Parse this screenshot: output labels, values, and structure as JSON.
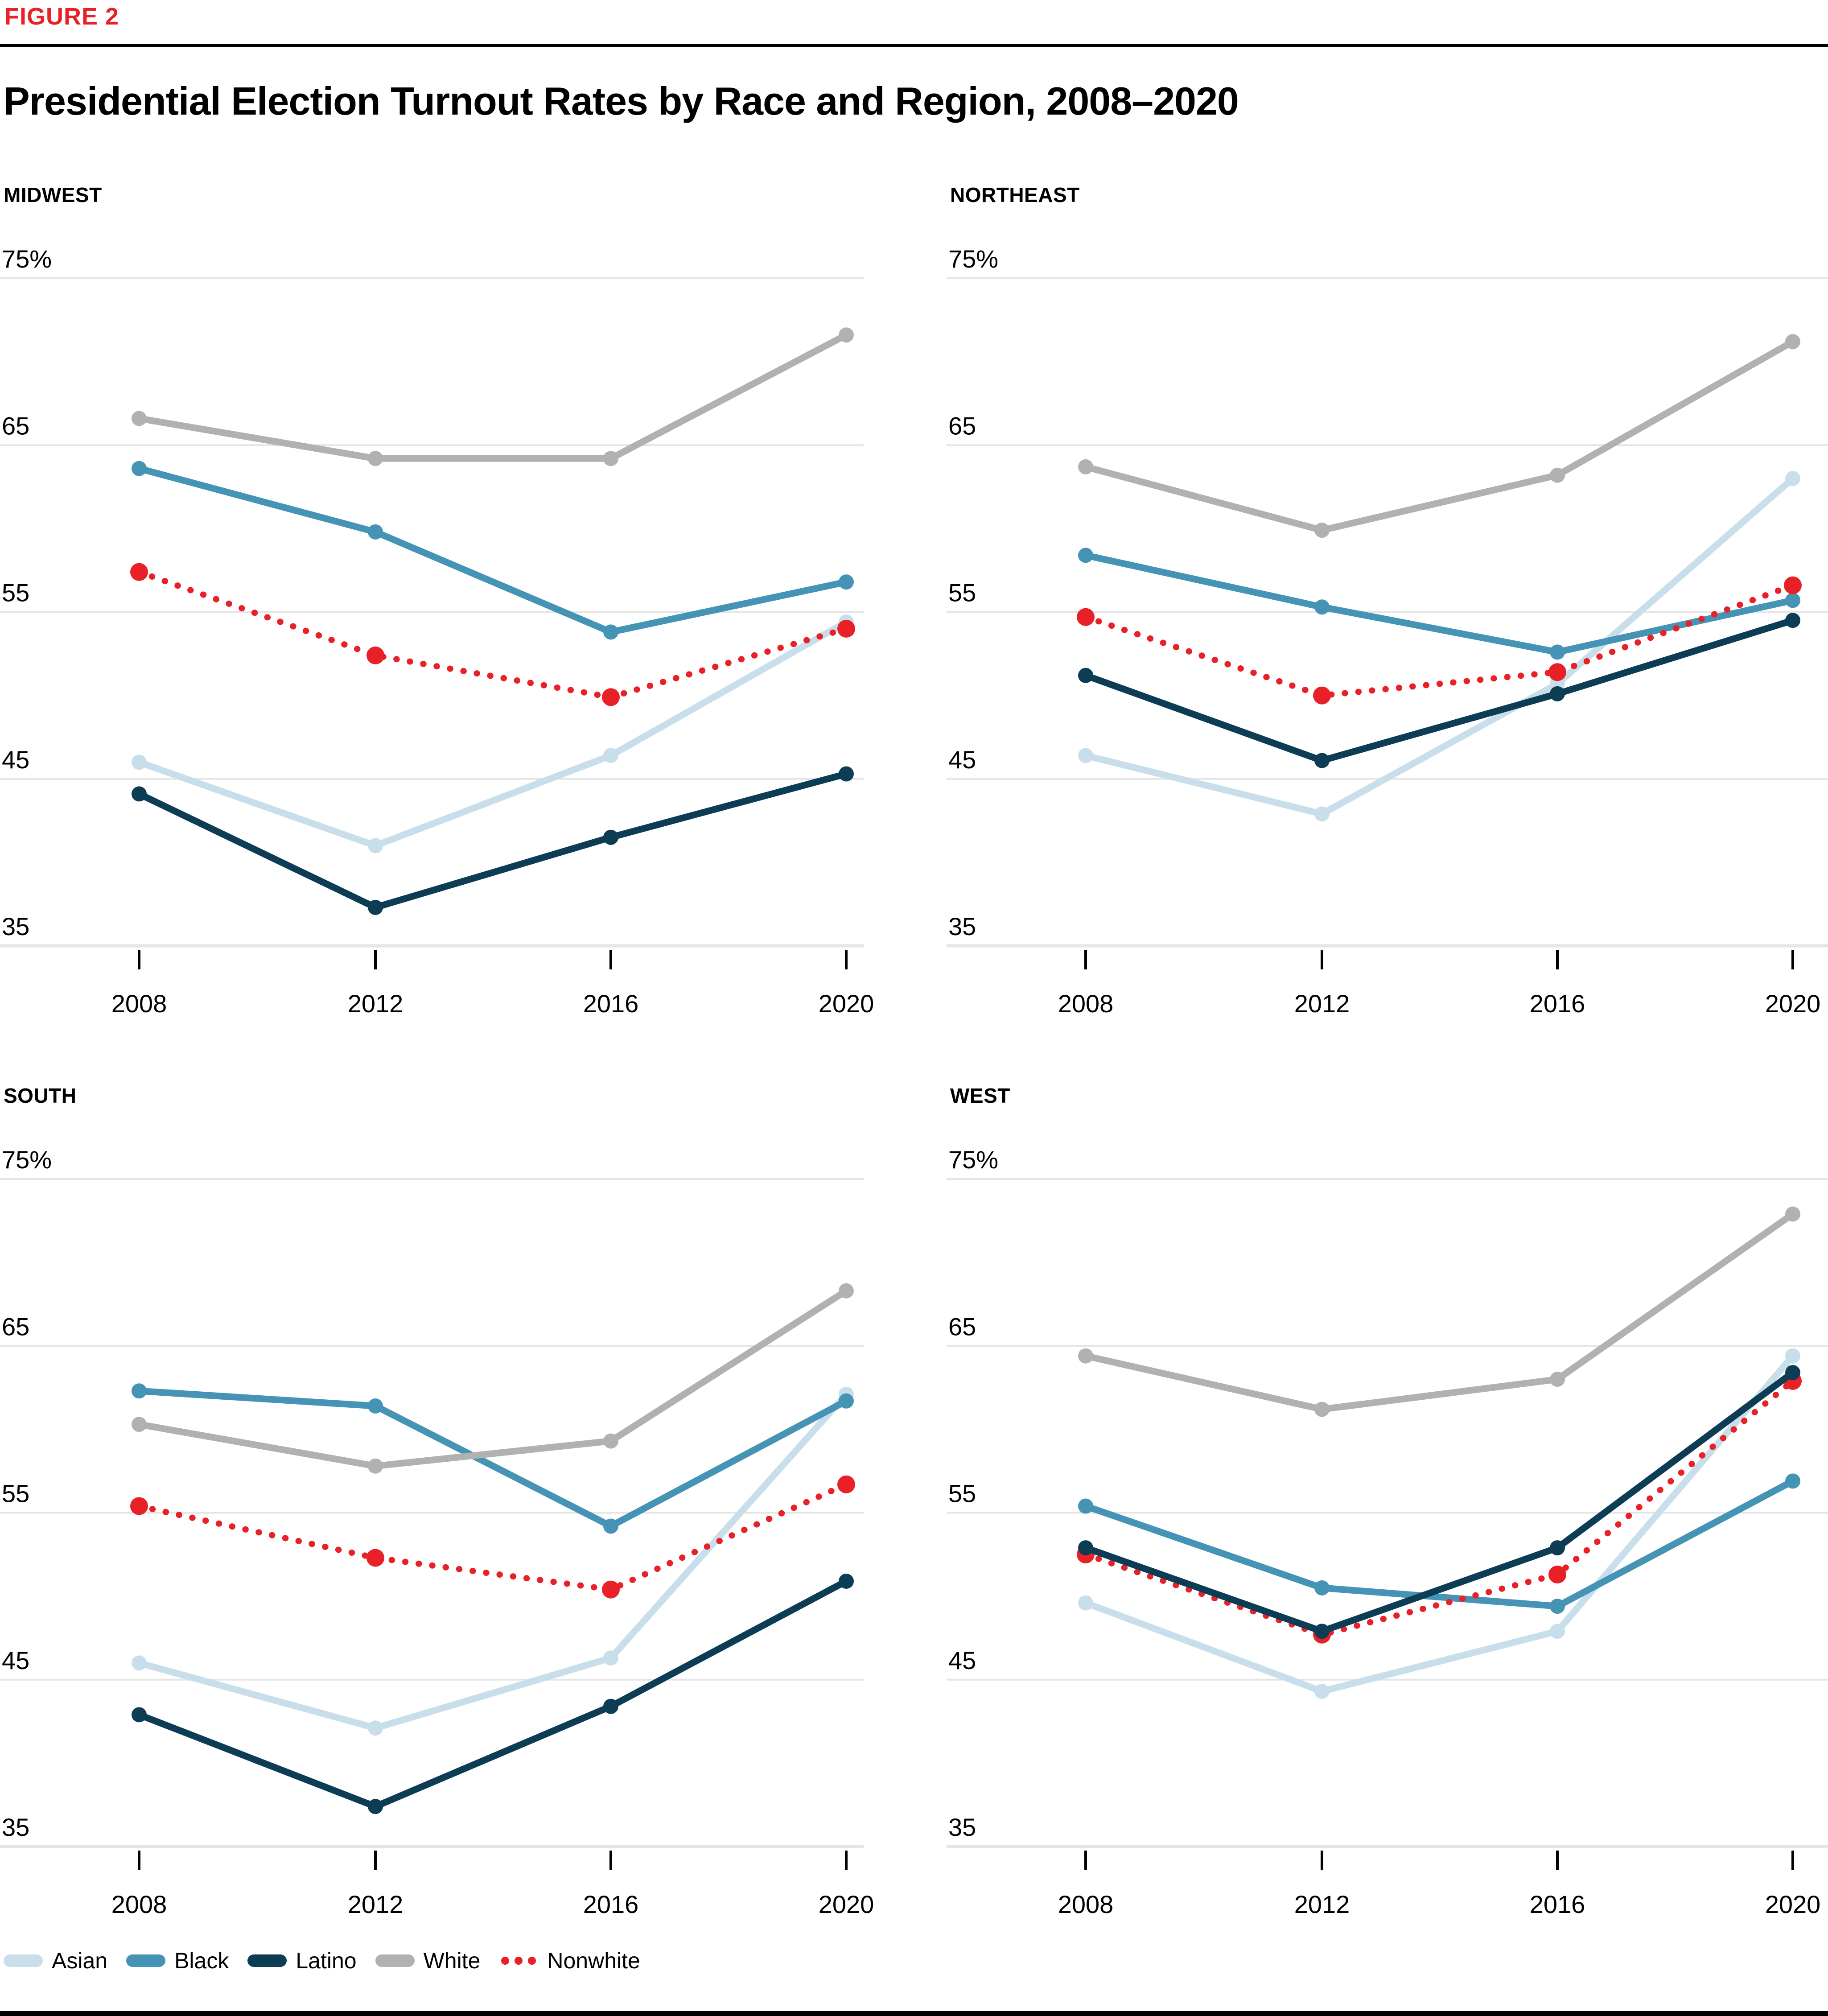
{
  "figure_label": "FIGURE 2",
  "title": "Presidential Election Turnout Rates by Race and Region, 2008–2020",
  "colors": {
    "asian": "#c8dfeb",
    "black": "#4694b5",
    "latino": "#0d3c55",
    "white": "#b1b1b1",
    "nonwhite": "#e82129",
    "gridline": "#e5e5e5",
    "axis_line": "#e5e5e5",
    "tick": "#000000",
    "figure_label": "#e82129",
    "top_rule": "#000000",
    "footer_bar": "#000000",
    "text": "#000000"
  },
  "legend": {
    "items": [
      {
        "id": "asian",
        "label": "Asian",
        "style": "solid"
      },
      {
        "id": "black",
        "label": "Black",
        "style": "solid"
      },
      {
        "id": "latino",
        "label": "Latino",
        "style": "solid"
      },
      {
        "id": "white",
        "label": "White",
        "style": "solid"
      },
      {
        "id": "nonwhite",
        "label": "Nonwhite",
        "style": "dotted"
      }
    ]
  },
  "chart_data": [
    {
      "type": "line",
      "title": "MIDWEST",
      "x": [
        2008,
        2012,
        2016,
        2020
      ],
      "ylim": [
        35,
        75
      ],
      "yticks": [
        75,
        65,
        55,
        45,
        35
      ],
      "ytick_labels": [
        "75%",
        "65",
        "55",
        "45",
        "35"
      ],
      "grid": true,
      "legend_position": "bottom",
      "series": [
        {
          "id": "asian",
          "name": "Asian",
          "values": [
            46.0,
            41.0,
            46.4,
            54.4
          ]
        },
        {
          "id": "black",
          "name": "Black",
          "values": [
            63.6,
            59.8,
            53.8,
            56.8
          ]
        },
        {
          "id": "latino",
          "name": "Latino",
          "values": [
            44.1,
            37.3,
            41.5,
            45.3
          ]
        },
        {
          "id": "white",
          "name": "White",
          "values": [
            66.6,
            64.2,
            64.2,
            71.6
          ]
        },
        {
          "id": "nonwhite",
          "name": "Nonwhite",
          "values": [
            57.4,
            52.4,
            49.9,
            54.0
          ]
        }
      ]
    },
    {
      "type": "line",
      "title": "NORTHEAST",
      "x": [
        2008,
        2012,
        2016,
        2020
      ],
      "ylim": [
        35,
        75
      ],
      "yticks": [
        75,
        65,
        55,
        45,
        35
      ],
      "ytick_labels": [
        "75%",
        "65",
        "55",
        "45",
        "35"
      ],
      "grid": true,
      "legend_position": "bottom",
      "series": [
        {
          "id": "asian",
          "name": "Asian",
          "values": [
            46.4,
            42.9,
            50.7,
            63.0
          ]
        },
        {
          "id": "black",
          "name": "Black",
          "values": [
            58.4,
            55.3,
            52.6,
            55.7
          ]
        },
        {
          "id": "latino",
          "name": "Latino",
          "values": [
            51.2,
            46.1,
            50.1,
            54.5
          ]
        },
        {
          "id": "white",
          "name": "White",
          "values": [
            63.7,
            59.9,
            63.2,
            71.2
          ]
        },
        {
          "id": "nonwhite",
          "name": "Nonwhite",
          "values": [
            54.7,
            50.0,
            51.4,
            56.6
          ]
        }
      ]
    },
    {
      "type": "line",
      "title": "SOUTH",
      "x": [
        2008,
        2012,
        2016,
        2020
      ],
      "ylim": [
        35,
        75
      ],
      "yticks": [
        75,
        65,
        55,
        45,
        35
      ],
      "ytick_labels": [
        "75%",
        "65",
        "55",
        "45",
        "35"
      ],
      "grid": true,
      "legend_position": "bottom",
      "series": [
        {
          "id": "asian",
          "name": "Asian",
          "values": [
            46.0,
            42.1,
            46.3,
            62.1
          ]
        },
        {
          "id": "black",
          "name": "Black",
          "values": [
            62.3,
            61.4,
            54.2,
            61.7
          ]
        },
        {
          "id": "latino",
          "name": "Latino",
          "values": [
            42.9,
            37.4,
            43.4,
            50.9
          ]
        },
        {
          "id": "white",
          "name": "White",
          "values": [
            60.3,
            57.8,
            59.3,
            68.3
          ]
        },
        {
          "id": "nonwhite",
          "name": "Nonwhite",
          "values": [
            55.4,
            52.3,
            50.4,
            56.7
          ]
        }
      ]
    },
    {
      "type": "line",
      "title": "WEST",
      "x": [
        2008,
        2012,
        2016,
        2020
      ],
      "ylim": [
        35,
        75
      ],
      "yticks": [
        75,
        65,
        55,
        45,
        35
      ],
      "ytick_labels": [
        "75%",
        "65",
        "55",
        "45",
        "35"
      ],
      "grid": true,
      "legend_position": "bottom",
      "series": [
        {
          "id": "asian",
          "name": "Asian",
          "values": [
            49.6,
            44.3,
            47.9,
            64.4
          ]
        },
        {
          "id": "black",
          "name": "Black",
          "values": [
            55.4,
            50.5,
            49.4,
            56.9
          ]
        },
        {
          "id": "latino",
          "name": "Latino",
          "values": [
            52.9,
            47.9,
            52.9,
            63.4
          ]
        },
        {
          "id": "white",
          "name": "White",
          "values": [
            64.4,
            61.2,
            63.0,
            72.9
          ]
        },
        {
          "id": "nonwhite",
          "name": "Nonwhite",
          "values": [
            52.5,
            47.7,
            51.3,
            62.9
          ]
        }
      ]
    }
  ]
}
